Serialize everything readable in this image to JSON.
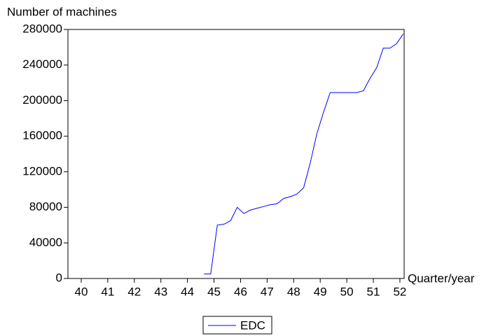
{
  "chart_data": {
    "type": "line",
    "y_label": "Number of machines",
    "x_label": "Quarter/year",
    "x": [
      45.125,
      45.375,
      45.625,
      45.875,
      46.125,
      46.375,
      46.625,
      46.875,
      47.125,
      47.375,
      47.625,
      47.875,
      48.125,
      48.375,
      48.625,
      48.875,
      49.125,
      49.375,
      49.625,
      49.875,
      50.125,
      50.375,
      50.625,
      50.875,
      51.125,
      51.375,
      51.625,
      51.875,
      52.125,
      52.375,
      52.625
    ],
    "series": [
      {
        "name": "EDC",
        "color": "#0000ff",
        "values": [
          5000,
          5000,
          60000,
          61000,
          65000,
          80000,
          73000,
          77000,
          79000,
          81000,
          83000,
          84000,
          90000,
          92000,
          95000,
          102000,
          130000,
          163000,
          187000,
          209000,
          209000,
          209000,
          209000,
          209000,
          211000,
          225000,
          237000,
          259000,
          259000,
          264000,
          275000
        ]
      }
    ],
    "xlim": [
      40,
      52.66
    ],
    "xticks": [
      {
        "value": 40.5,
        "label": "40"
      },
      {
        "value": 41.5,
        "label": "41"
      },
      {
        "value": 42.5,
        "label": "42"
      },
      {
        "value": 43.5,
        "label": "43"
      },
      {
        "value": 44.5,
        "label": "44"
      },
      {
        "value": 45.5,
        "label": "45"
      },
      {
        "value": 46.5,
        "label": "46"
      },
      {
        "value": 47.5,
        "label": "47"
      },
      {
        "value": 48.5,
        "label": "48"
      },
      {
        "value": 49.5,
        "label": "49"
      },
      {
        "value": 50.5,
        "label": "50"
      },
      {
        "value": 51.5,
        "label": "51"
      },
      {
        "value": 52.5,
        "label": "52"
      }
    ],
    "ylim": [
      0,
      280000
    ],
    "yticks": [
      0,
      40000,
      80000,
      120000,
      160000,
      200000,
      240000,
      280000
    ],
    "legend": "bottom"
  }
}
